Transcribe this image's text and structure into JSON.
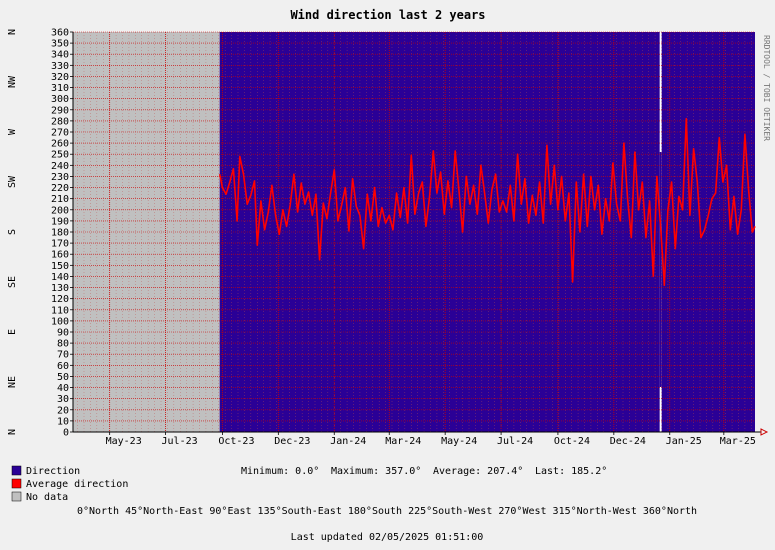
{
  "header": {
    "title": "Wind direction last 2 years",
    "credit": "RRDTOOL / TOBI OETIKER"
  },
  "colors": {
    "direction": "#2a0096",
    "average": "#ff0000",
    "nodata": "#c0c0c0",
    "background": "#f0f0f0",
    "grid": "#cc0000",
    "gap": "#ffffff"
  },
  "chart_data": {
    "type": "area",
    "title": "Wind direction last 2 years",
    "x_range": [
      "2023-03-22",
      "2025-04-04"
    ],
    "ylim": [
      0,
      360
    ],
    "y_ticks": [
      0,
      10,
      20,
      30,
      40,
      50,
      60,
      70,
      80,
      90,
      100,
      110,
      120,
      130,
      140,
      150,
      160,
      170,
      180,
      190,
      200,
      210,
      220,
      230,
      240,
      250,
      260,
      270,
      280,
      290,
      300,
      310,
      320,
      330,
      340,
      350,
      360
    ],
    "compass_labels": [
      {
        "value": 0,
        "label": "N"
      },
      {
        "value": 45,
        "label": "NE"
      },
      {
        "value": 90,
        "label": "E"
      },
      {
        "value": 135,
        "label": "SE"
      },
      {
        "value": 180,
        "label": "S"
      },
      {
        "value": 225,
        "label": "SW"
      },
      {
        "value": 270,
        "label": "W"
      },
      {
        "value": 315,
        "label": "NW"
      },
      {
        "value": 360,
        "label": "N"
      }
    ],
    "x_ticks": [
      {
        "date": "2023-05-01",
        "label": "May-23"
      },
      {
        "date": "2023-07-01",
        "label": "Jul-23"
      },
      {
        "date": "2023-09-01",
        "label": "Oct-23"
      },
      {
        "date": "2023-11-01",
        "label": "Dec-23"
      },
      {
        "date": "2024-01-01",
        "label": "Jan-24"
      },
      {
        "date": "2024-03-01",
        "label": "Mar-24"
      },
      {
        "date": "2024-05-01",
        "label": "May-24"
      },
      {
        "date": "2024-07-01",
        "label": "Jul-24"
      },
      {
        "date": "2024-09-01",
        "label": "Oct-24"
      },
      {
        "date": "2024-11-01",
        "label": "Dec-24"
      },
      {
        "date": "2025-01-01",
        "label": "Jan-25"
      },
      {
        "date": "2025-03-01",
        "label": "Mar-25"
      }
    ],
    "no_data_range": [
      "2023-03-22",
      "2023-08-29"
    ],
    "direction_range": [
      "2023-08-29",
      "2025-04-04"
    ],
    "direction_gap": [
      "2024-12-21",
      "2024-12-22"
    ],
    "series": [
      {
        "name": "Average direction",
        "values": [
          [
            "2023-08-29",
            232
          ],
          [
            "2023-09-01",
            220
          ],
          [
            "2023-09-05",
            214
          ],
          [
            "2023-09-09",
            225
          ],
          [
            "2023-09-13",
            237
          ],
          [
            "2023-09-17",
            190
          ],
          [
            "2023-09-20",
            248
          ],
          [
            "2023-09-24",
            232
          ],
          [
            "2023-09-28",
            205
          ],
          [
            "2023-10-02",
            213
          ],
          [
            "2023-10-06",
            226
          ],
          [
            "2023-10-09",
            168
          ],
          [
            "2023-10-13",
            208
          ],
          [
            "2023-10-17",
            182
          ],
          [
            "2023-10-21",
            198
          ],
          [
            "2023-10-25",
            222
          ],
          [
            "2023-10-29",
            195
          ],
          [
            "2023-11-02",
            178
          ],
          [
            "2023-11-06",
            200
          ],
          [
            "2023-11-10",
            185
          ],
          [
            "2023-11-14",
            205
          ],
          [
            "2023-11-18",
            232
          ],
          [
            "2023-11-22",
            198
          ],
          [
            "2023-11-26",
            224
          ],
          [
            "2023-11-30",
            205
          ],
          [
            "2023-12-04",
            216
          ],
          [
            "2023-12-08",
            195
          ],
          [
            "2023-12-12",
            214
          ],
          [
            "2023-12-16",
            155
          ],
          [
            "2023-12-20",
            206
          ],
          [
            "2023-12-24",
            192
          ],
          [
            "2023-12-28",
            215
          ],
          [
            "2024-01-01",
            236
          ],
          [
            "2024-01-05",
            190
          ],
          [
            "2024-01-09",
            204
          ],
          [
            "2024-01-13",
            220
          ],
          [
            "2024-01-17",
            181
          ],
          [
            "2024-01-21",
            228
          ],
          [
            "2024-01-25",
            203
          ],
          [
            "2024-01-29",
            195
          ],
          [
            "2024-02-02",
            165
          ],
          [
            "2024-02-06",
            214
          ],
          [
            "2024-02-10",
            190
          ],
          [
            "2024-02-14",
            220
          ],
          [
            "2024-02-18",
            185
          ],
          [
            "2024-02-22",
            202
          ],
          [
            "2024-02-26",
            188
          ],
          [
            "2024-03-01",
            195
          ],
          [
            "2024-03-05",
            182
          ],
          [
            "2024-03-09",
            215
          ],
          [
            "2024-03-13",
            193
          ],
          [
            "2024-03-17",
            220
          ],
          [
            "2024-03-21",
            188
          ],
          [
            "2024-03-25",
            249
          ],
          [
            "2024-03-29",
            196
          ],
          [
            "2024-04-02",
            215
          ],
          [
            "2024-04-06",
            225
          ],
          [
            "2024-04-10",
            185
          ],
          [
            "2024-04-14",
            212
          ],
          [
            "2024-04-18",
            253
          ],
          [
            "2024-04-22",
            215
          ],
          [
            "2024-04-26",
            234
          ],
          [
            "2024-04-30",
            196
          ],
          [
            "2024-05-04",
            226
          ],
          [
            "2024-05-08",
            202
          ],
          [
            "2024-05-12",
            253
          ],
          [
            "2024-05-16",
            218
          ],
          [
            "2024-05-20",
            180
          ],
          [
            "2024-05-24",
            230
          ],
          [
            "2024-05-28",
            205
          ],
          [
            "2024-06-01",
            222
          ],
          [
            "2024-06-05",
            196
          ],
          [
            "2024-06-09",
            240
          ],
          [
            "2024-06-13",
            215
          ],
          [
            "2024-06-17",
            188
          ],
          [
            "2024-06-21",
            218
          ],
          [
            "2024-06-25",
            232
          ],
          [
            "2024-06-29",
            198
          ],
          [
            "2024-07-03",
            208
          ],
          [
            "2024-07-07",
            198
          ],
          [
            "2024-07-11",
            222
          ],
          [
            "2024-07-15",
            190
          ],
          [
            "2024-07-19",
            250
          ],
          [
            "2024-07-23",
            205
          ],
          [
            "2024-07-27",
            228
          ],
          [
            "2024-07-31",
            188
          ],
          [
            "2024-08-04",
            213
          ],
          [
            "2024-08-08",
            195
          ],
          [
            "2024-08-12",
            225
          ],
          [
            "2024-08-16",
            188
          ],
          [
            "2024-08-20",
            258
          ],
          [
            "2024-08-24",
            205
          ],
          [
            "2024-08-28",
            240
          ],
          [
            "2024-09-01",
            200
          ],
          [
            "2024-09-05",
            230
          ],
          [
            "2024-09-09",
            190
          ],
          [
            "2024-09-13",
            215
          ],
          [
            "2024-09-17",
            135
          ],
          [
            "2024-09-21",
            225
          ],
          [
            "2024-09-25",
            180
          ],
          [
            "2024-09-29",
            232
          ],
          [
            "2024-10-03",
            185
          ],
          [
            "2024-10-07",
            230
          ],
          [
            "2024-10-11",
            200
          ],
          [
            "2024-10-15",
            222
          ],
          [
            "2024-10-19",
            178
          ],
          [
            "2024-10-23",
            210
          ],
          [
            "2024-10-27",
            190
          ],
          [
            "2024-10-31",
            242
          ],
          [
            "2024-11-04",
            205
          ],
          [
            "2024-11-08",
            190
          ],
          [
            "2024-11-12",
            260
          ],
          [
            "2024-11-16",
            210
          ],
          [
            "2024-11-20",
            175
          ],
          [
            "2024-11-24",
            252
          ],
          [
            "2024-11-28",
            200
          ],
          [
            "2024-12-02",
            225
          ],
          [
            "2024-12-06",
            175
          ],
          [
            "2024-12-10",
            208
          ],
          [
            "2024-12-14",
            140
          ],
          [
            "2024-12-18",
            230
          ],
          [
            "2024-12-22",
            185
          ],
          [
            "2024-12-26",
            132
          ],
          [
            "2024-12-30",
            200
          ],
          [
            "2025-01-03",
            225
          ],
          [
            "2025-01-07",
            165
          ],
          [
            "2025-01-11",
            212
          ],
          [
            "2025-01-15",
            200
          ],
          [
            "2025-01-19",
            282
          ],
          [
            "2025-01-23",
            195
          ],
          [
            "2025-01-27",
            255
          ],
          [
            "2025-01-31",
            225
          ],
          [
            "2025-02-04",
            175
          ],
          [
            "2025-02-08",
            182
          ],
          [
            "2025-02-12",
            195
          ],
          [
            "2025-02-16",
            210
          ],
          [
            "2025-02-20",
            215
          ],
          [
            "2025-02-24",
            265
          ],
          [
            "2025-02-28",
            225
          ],
          [
            "2025-03-04",
            240
          ],
          [
            "2025-03-08",
            182
          ],
          [
            "2025-03-12",
            212
          ],
          [
            "2025-03-16",
            178
          ],
          [
            "2025-03-20",
            200
          ],
          [
            "2025-03-24",
            268
          ],
          [
            "2025-03-28",
            218
          ],
          [
            "2025-04-01",
            180
          ],
          [
            "2025-04-04",
            185
          ]
        ]
      }
    ]
  },
  "legend": {
    "direction": "Direction",
    "average": "Average direction",
    "nodata": "No data"
  },
  "stats": {
    "minimum": "Minimum: 0.0°",
    "maximum": "Maximum: 357.0°",
    "average": "Average: 207.4°",
    "last": "Last: 185.2°"
  },
  "compass_key": "0°North 45°North-East 90°East 135°South-East 180°South 225°South-West 270°West 315°North-West 360°North",
  "footer": {
    "updated": "Last updated 02/05/2025 01:51:00"
  }
}
